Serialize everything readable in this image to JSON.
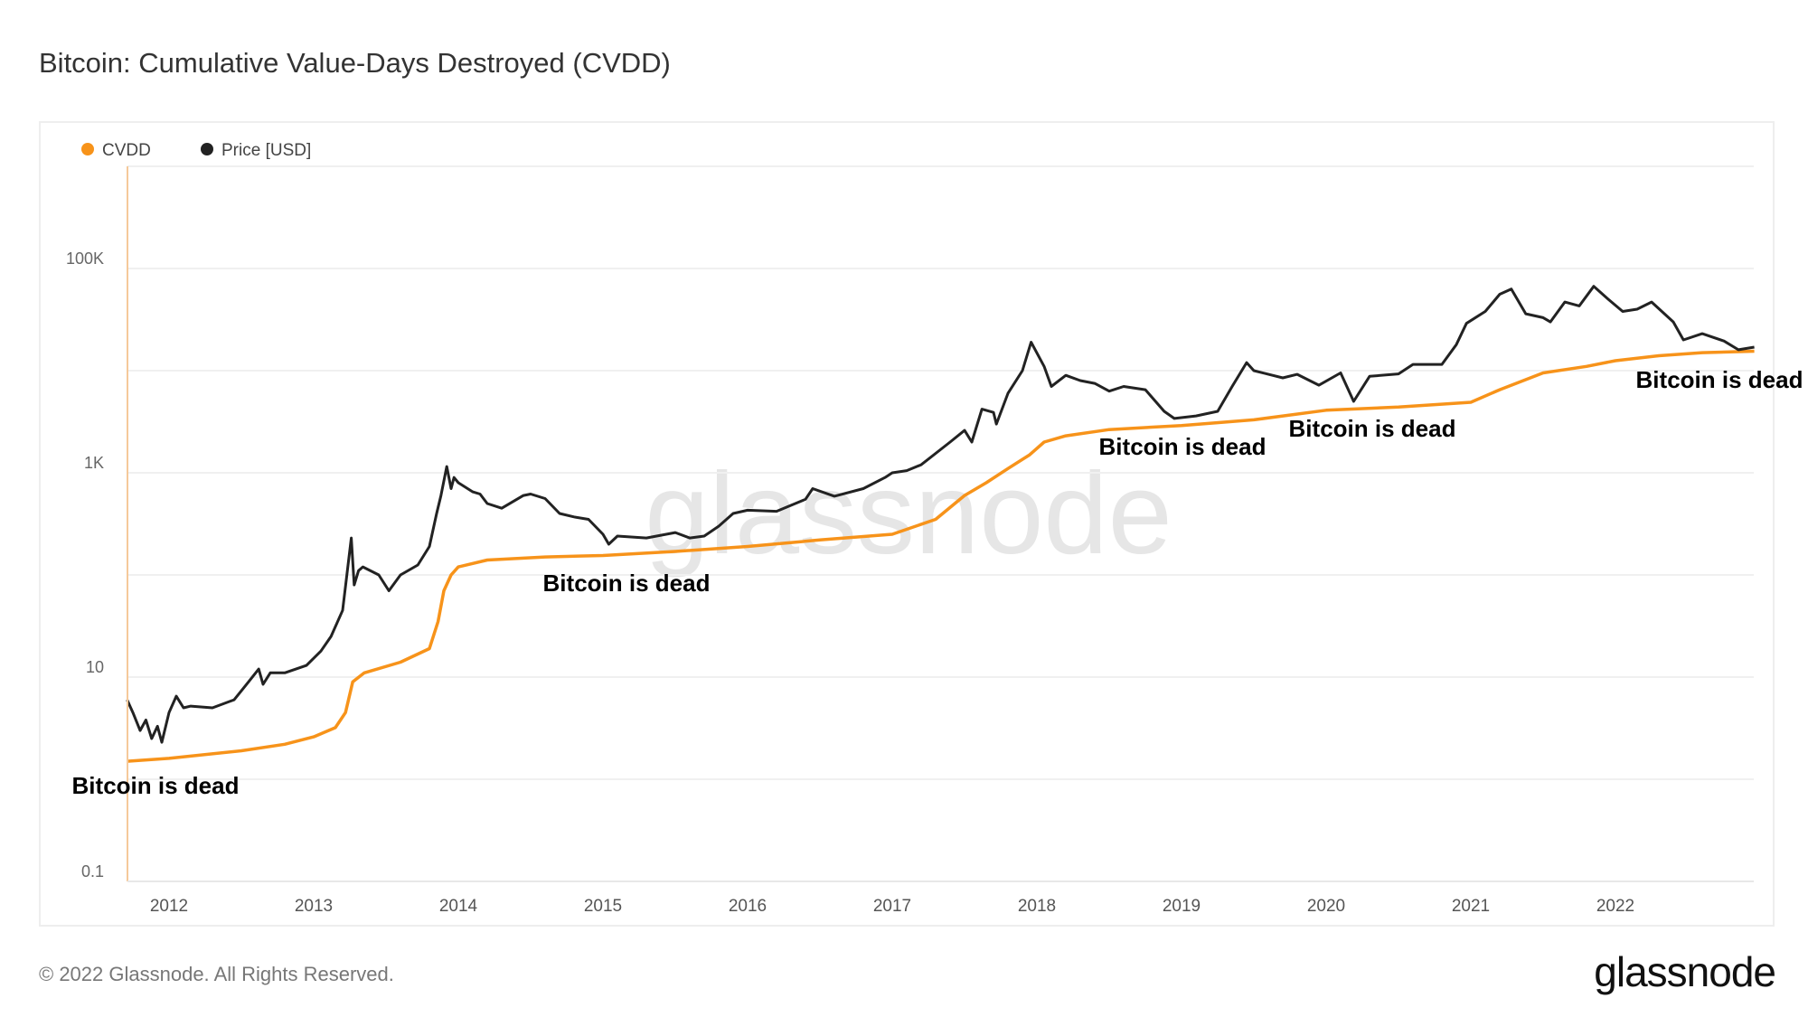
{
  "title": "Bitcoin: Cumulative Value-Days Destroyed (CVDD)",
  "footer": "© 2022 Glassnode. All Rights Reserved.",
  "logo": "glassnode",
  "watermark": "glassnode",
  "colors": {
    "cvdd": "#f7931a",
    "price": "#222222",
    "grid": "#f0f0f0"
  },
  "chart_data": {
    "type": "line",
    "title": "Bitcoin: Cumulative Value-Days Destroyed (CVDD)",
    "y_scale": "log",
    "ylim": [
      0.1,
      1000000
    ],
    "xlim": [
      2011.71,
      2022.96
    ],
    "grid": true,
    "legend_placement": "top-left",
    "legend": [
      "CVDD",
      "Price [USD]"
    ],
    "y_ticks": [
      {
        "value": 0.1,
        "label": "0.1"
      },
      {
        "value": 10,
        "label": "10"
      },
      {
        "value": 1000,
        "label": "1K"
      },
      {
        "value": 100000,
        "label": "100K"
      }
    ],
    "x_ticks": [
      "2012",
      "2013",
      "2014",
      "2015",
      "2016",
      "2017",
      "2018",
      "2019",
      "2020",
      "2021",
      "2022"
    ],
    "annotations": [
      "Bitcoin is dead",
      "Bitcoin is dead",
      "Bitcoin is dead",
      "Bitcoin is dead",
      "Bitcoin is dead"
    ],
    "series": [
      {
        "name": "CVDD",
        "color": "#f7931a",
        "x": [
          2011.71,
          2012.0,
          2012.5,
          2012.8,
          2013.0,
          2013.15,
          2013.22,
          2013.27,
          2013.35,
          2013.6,
          2013.8,
          2013.86,
          2013.9,
          2013.95,
          2014.0,
          2014.2,
          2014.6,
          2015.0,
          2015.5,
          2016.0,
          2016.5,
          2017.0,
          2017.3,
          2017.5,
          2017.65,
          2017.8,
          2017.95,
          2018.05,
          2018.2,
          2018.5,
          2019.0,
          2019.5,
          2020.0,
          2020.5,
          2021.0,
          2021.2,
          2021.5,
          2021.8,
          2022.0,
          2022.3,
          2022.6,
          2022.96
        ],
        "y": [
          1.5,
          1.6,
          1.9,
          2.2,
          2.6,
          3.2,
          4.5,
          9,
          11,
          14,
          19,
          35,
          70,
          100,
          120,
          140,
          150,
          155,
          170,
          190,
          220,
          250,
          350,
          600,
          800,
          1100,
          1500,
          2000,
          2300,
          2650,
          2900,
          3300,
          4100,
          4400,
          4900,
          6500,
          9500,
          11000,
          12500,
          14000,
          15000,
          15500
        ]
      },
      {
        "name": "Price [USD]",
        "color": "#222222",
        "x": [
          2011.71,
          2011.75,
          2011.8,
          2011.84,
          2011.88,
          2011.92,
          2011.95,
          2012.0,
          2012.05,
          2012.1,
          2012.15,
          2012.3,
          2012.45,
          2012.55,
          2012.62,
          2012.65,
          2012.7,
          2012.8,
          2012.95,
          2013.05,
          2013.12,
          2013.2,
          2013.26,
          2013.28,
          2013.31,
          2013.34,
          2013.45,
          2013.52,
          2013.6,
          2013.72,
          2013.8,
          2013.85,
          2013.88,
          2013.92,
          2013.95,
          2013.97,
          2014.0,
          2014.1,
          2014.15,
          2014.2,
          2014.3,
          2014.45,
          2014.5,
          2014.6,
          2014.7,
          2014.8,
          2014.9,
          2015.0,
          2015.04,
          2015.1,
          2015.3,
          2015.5,
          2015.6,
          2015.7,
          2015.8,
          2015.9,
          2016.0,
          2016.2,
          2016.4,
          2016.45,
          2016.6,
          2016.8,
          2016.95,
          2017.0,
          2017.1,
          2017.2,
          2017.4,
          2017.5,
          2017.55,
          2017.62,
          2017.7,
          2017.72,
          2017.8,
          2017.9,
          2017.96,
          2018.05,
          2018.1,
          2018.2,
          2018.3,
          2018.4,
          2018.5,
          2018.6,
          2018.75,
          2018.88,
          2018.95,
          2019.1,
          2019.25,
          2019.35,
          2019.45,
          2019.5,
          2019.7,
          2019.8,
          2019.95,
          2020.1,
          2020.19,
          2020.3,
          2020.5,
          2020.6,
          2020.8,
          2020.9,
          2020.97,
          2021.1,
          2021.2,
          2021.28,
          2021.38,
          2021.5,
          2021.55,
          2021.65,
          2021.75,
          2021.85,
          2021.95,
          2022.05,
          2022.15,
          2022.25,
          2022.4,
          2022.47,
          2022.6,
          2022.75,
          2022.85,
          2022.96
        ],
        "y": [
          6,
          4.5,
          3,
          3.8,
          2.5,
          3.3,
          2.3,
          4.5,
          6.5,
          5,
          5.2,
          5,
          6,
          9,
          12,
          8.5,
          11,
          11,
          13,
          18,
          25,
          45,
          230,
          80,
          110,
          120,
          100,
          70,
          100,
          125,
          190,
          400,
          600,
          1150,
          700,
          900,
          800,
          650,
          620,
          500,
          450,
          600,
          620,
          560,
          400,
          370,
          350,
          250,
          200,
          240,
          230,
          260,
          230,
          240,
          300,
          400,
          430,
          420,
          550,
          700,
          590,
          700,
          900,
          1000,
          1050,
          1200,
          2000,
          2600,
          2000,
          4200,
          3900,
          3000,
          6000,
          10000,
          19000,
          11000,
          7000,
          9000,
          8000,
          7500,
          6300,
          7000,
          6500,
          4000,
          3400,
          3600,
          4000,
          7000,
          12000,
          10000,
          8500,
          9200,
          7200,
          9500,
          5000,
          8800,
          9300,
          11500,
          11500,
          18000,
          29000,
          38000,
          56000,
          63000,
          36000,
          33000,
          30000,
          47000,
          43000,
          67000,
          50000,
          38000,
          40000,
          47000,
          30000,
          20000,
          23000,
          19500,
          16000,
          17000
        ]
      }
    ]
  }
}
